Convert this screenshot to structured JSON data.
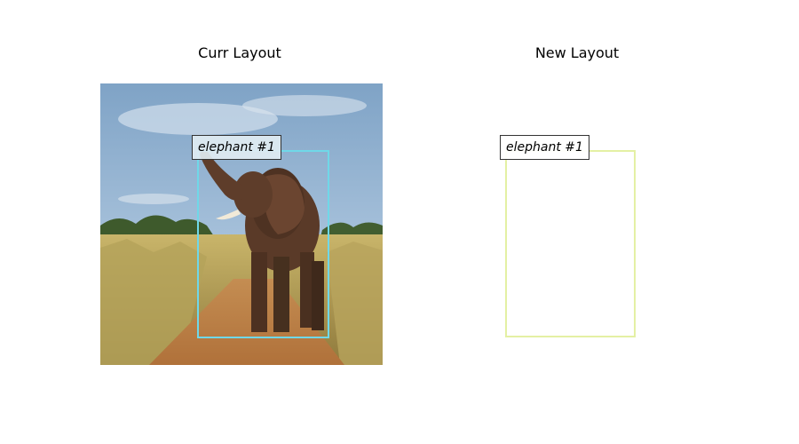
{
  "panels": [
    {
      "title": "Curr Layout",
      "has_image": true,
      "boxes": [
        {
          "label": "elephant #1",
          "color": "#6fd8e8"
        }
      ]
    },
    {
      "title": "New Layout",
      "has_image": false,
      "boxes": [
        {
          "label": "elephant #1",
          "color": "#e4f0a4"
        }
      ]
    }
  ]
}
